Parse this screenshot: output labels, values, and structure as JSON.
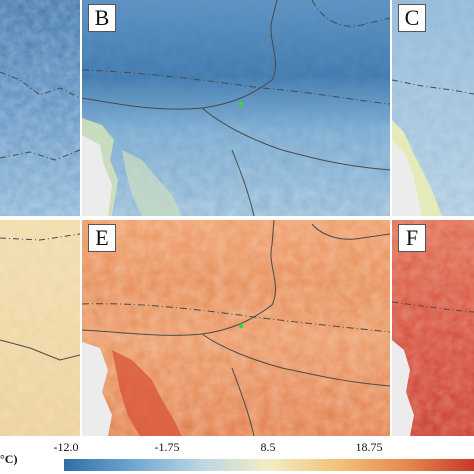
{
  "panels": [
    {
      "id": "A",
      "label": "",
      "palette": "cold"
    },
    {
      "id": "B",
      "label": "B",
      "palette": "cold"
    },
    {
      "id": "C",
      "label": "C",
      "palette": "cold"
    },
    {
      "id": "D",
      "label": "",
      "palette": "mild"
    },
    {
      "id": "E",
      "label": "E",
      "palette": "warm"
    },
    {
      "id": "F",
      "label": "F",
      "palette": "hot"
    }
  ],
  "colorbar": {
    "unit_fragment": "°C)",
    "ticks": [
      "-12.0",
      "-1.75",
      "8.5",
      "18.75"
    ],
    "tick_values": [
      -12.0,
      -1.75,
      8.5,
      18.75
    ],
    "range": [
      -12.0,
      29.0
    ],
    "colors": [
      "#2f6fa7",
      "#6fa6d0",
      "#bcd6e3",
      "#f1eec4",
      "#f3c27a",
      "#e58a4e",
      "#c8382b"
    ]
  },
  "marker": {
    "color": "#33dd33"
  },
  "colors": {
    "cold_deep": "#3f78ad",
    "cold_light": "#c2dae8",
    "cold_coast": "#e3ecb8",
    "mild": "#efd9a6",
    "warm": "#e8895a",
    "hot": "#d4473a",
    "sea": "#e8e8e8",
    "border": "#4a4a4a"
  }
}
